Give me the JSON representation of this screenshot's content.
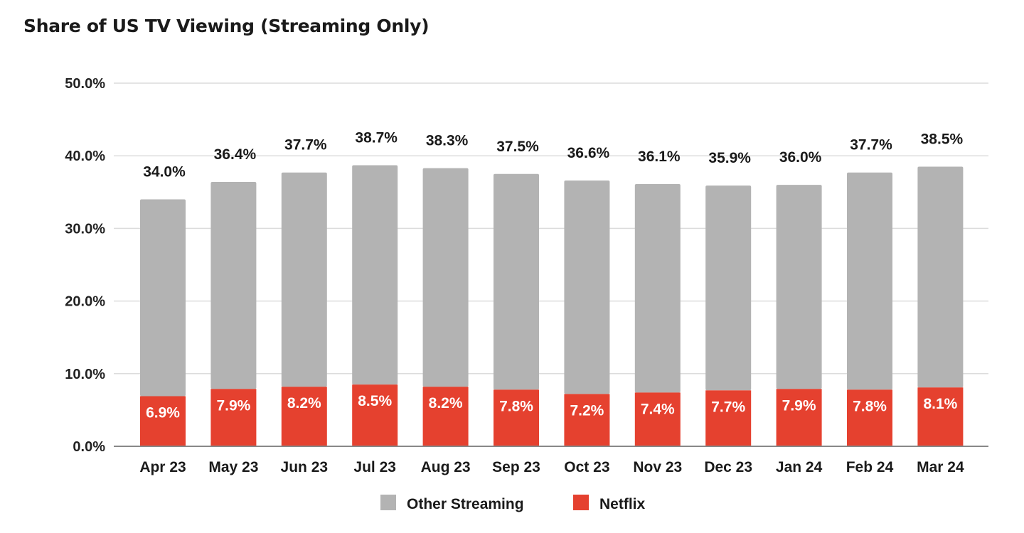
{
  "chart_data": {
    "type": "bar",
    "stacked": true,
    "title": "Share of US TV Viewing (Streaming Only)",
    "xlabel": "",
    "ylabel": "",
    "ylim": [
      0,
      50
    ],
    "yticks": [
      "0.0%",
      "10.0%",
      "20.0%",
      "30.0%",
      "40.0%",
      "50.0%"
    ],
    "grid": true,
    "legend": "bottom",
    "categories": [
      "Apr 23",
      "May 23",
      "Jun 23",
      "Jul 23",
      "Aug 23",
      "Sep 23",
      "Oct 23",
      "Nov 23",
      "Dec 23",
      "Jan 24",
      "Feb 24",
      "Mar 24"
    ],
    "series": [
      {
        "name": "Netflix",
        "color": "#e5412f",
        "values": [
          6.9,
          7.9,
          8.2,
          8.5,
          8.2,
          7.8,
          7.2,
          7.4,
          7.7,
          7.9,
          7.8,
          8.1
        ],
        "labels": [
          "6.9%",
          "7.9%",
          "8.2%",
          "8.5%",
          "8.2%",
          "7.8%",
          "7.2%",
          "7.4%",
          "7.7%",
          "7.9%",
          "7.8%",
          "8.1%"
        ]
      },
      {
        "name": "Other Streaming",
        "color": "#b3b3b3",
        "values": [
          27.1,
          28.5,
          29.5,
          30.2,
          30.1,
          29.7,
          29.4,
          28.7,
          28.2,
          28.1,
          29.9,
          30.4
        ]
      }
    ],
    "totals": [
      34.0,
      36.4,
      37.7,
      38.7,
      38.3,
      37.5,
      36.6,
      36.1,
      35.9,
      36.0,
      37.7,
      38.5
    ],
    "total_labels": [
      "34.0%",
      "36.4%",
      "37.7%",
      "38.7%",
      "38.3%",
      "37.5%",
      "36.6%",
      "36.1%",
      "35.9%",
      "36.0%",
      "37.7%",
      "38.5%"
    ],
    "legend_entries": [
      "Other Streaming",
      "Netflix"
    ]
  }
}
